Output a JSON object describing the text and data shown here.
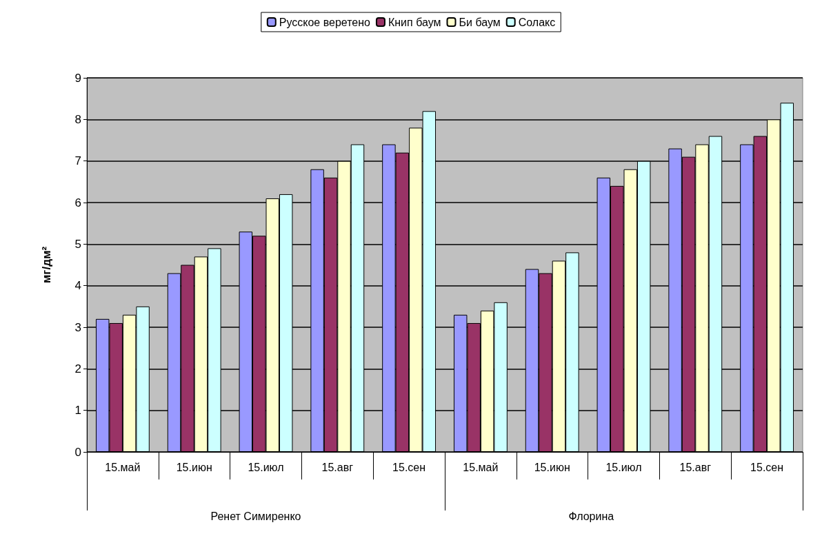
{
  "chart_data": {
    "type": "bar",
    "ylabel": "мг/дм²",
    "categories": [
      "15.май",
      "15.июн",
      "15.июл",
      "15.авг",
      "15.сен",
      "15.май",
      "15.июн",
      "15.июл",
      "15.авг",
      "15.сен"
    ],
    "series": [
      {
        "name": "Русское веретено",
        "color": "#9999ff",
        "values": [
          3.2,
          4.3,
          5.3,
          6.8,
          7.4,
          3.3,
          4.4,
          6.6,
          7.3,
          7.4
        ]
      },
      {
        "name": "Книп баум",
        "color": "#993366",
        "values": [
          3.1,
          4.5,
          5.2,
          6.6,
          7.2,
          3.1,
          4.3,
          6.4,
          7.1,
          7.6
        ]
      },
      {
        "name": "Би баум",
        "color": "#ffffcc",
        "values": [
          3.3,
          4.7,
          6.1,
          7.0,
          7.8,
          3.4,
          4.6,
          6.8,
          7.4,
          8.0
        ]
      },
      {
        "name": "Солакс",
        "color": "#ccffff",
        "values": [
          3.5,
          4.9,
          6.2,
          7.4,
          8.2,
          3.6,
          4.8,
          7.0,
          7.6,
          8.4
        ]
      }
    ],
    "annotations": [
      "Ренет Симиренко",
      "Флорина"
    ],
    "ylim": [
      0,
      9
    ],
    "yticks": [
      0,
      1,
      2,
      3,
      4,
      5,
      6,
      7,
      8,
      9
    ],
    "grid": "y",
    "legend": "top"
  }
}
